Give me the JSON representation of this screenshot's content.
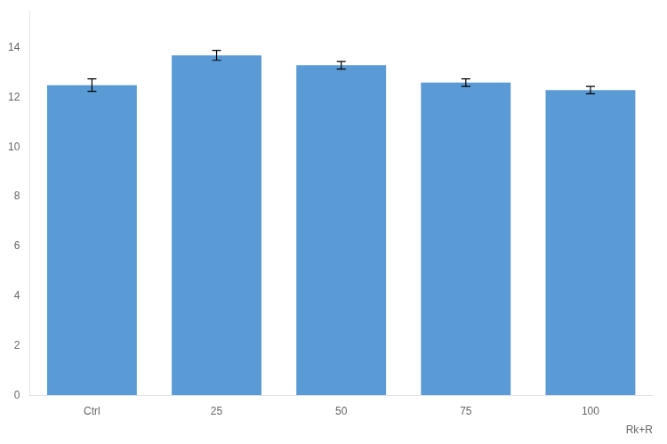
{
  "chart_data": {
    "type": "bar",
    "categories": [
      "Ctrl",
      "25",
      "50",
      "75",
      "100"
    ],
    "values": [
      12.5,
      13.7,
      13.3,
      12.6,
      12.3
    ],
    "errors": [
      0.25,
      0.2,
      0.15,
      0.15,
      0.15
    ],
    "color": "#5B9BD5",
    "ylim": [
      0,
      15.5
    ],
    "yticks": [
      0,
      2,
      4,
      6,
      8,
      10,
      12,
      14
    ],
    "annotations": [
      "Rk+R"
    ],
    "grid": false
  }
}
